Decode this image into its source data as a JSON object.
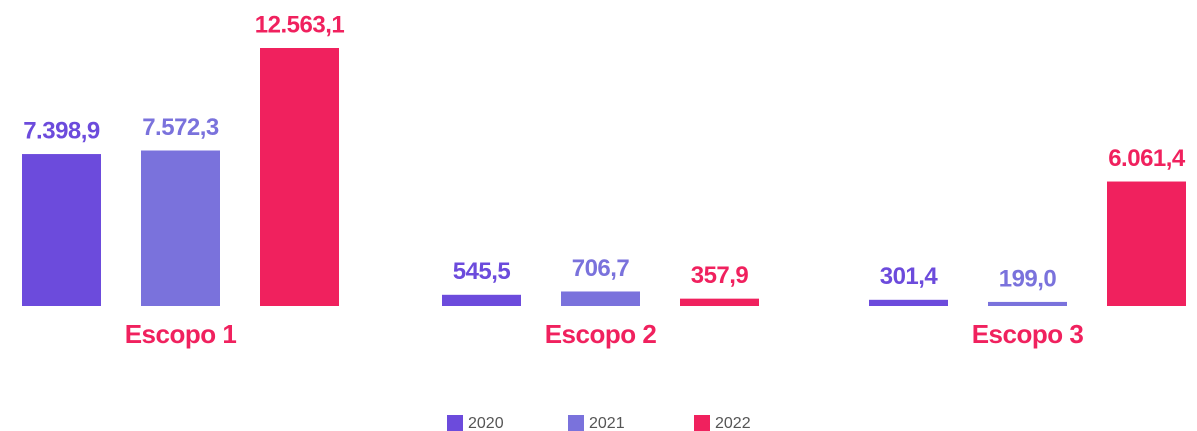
{
  "chart_data": {
    "type": "bar",
    "categories": [
      "Escopo 1",
      "Escopo 2",
      "Escopo 3"
    ],
    "series": [
      {
        "name": "2020",
        "color": "#6c4bdc",
        "values": [
          7398.9,
          545.5,
          301.4
        ],
        "value_labels": [
          "7.398,9",
          "545,5",
          "301,4"
        ]
      },
      {
        "name": "2021",
        "color": "#7a72dc",
        "values": [
          7572.3,
          706.7,
          199.0
        ],
        "value_labels": [
          "7.572,3",
          "706,7",
          "199,0"
        ]
      },
      {
        "name": "2022",
        "color": "#f0215e",
        "values": [
          12563.1,
          357.9,
          6061.4
        ],
        "value_labels": [
          "12.563,1",
          "357,9",
          "6.061,4"
        ]
      }
    ],
    "legend": "bottom"
  }
}
